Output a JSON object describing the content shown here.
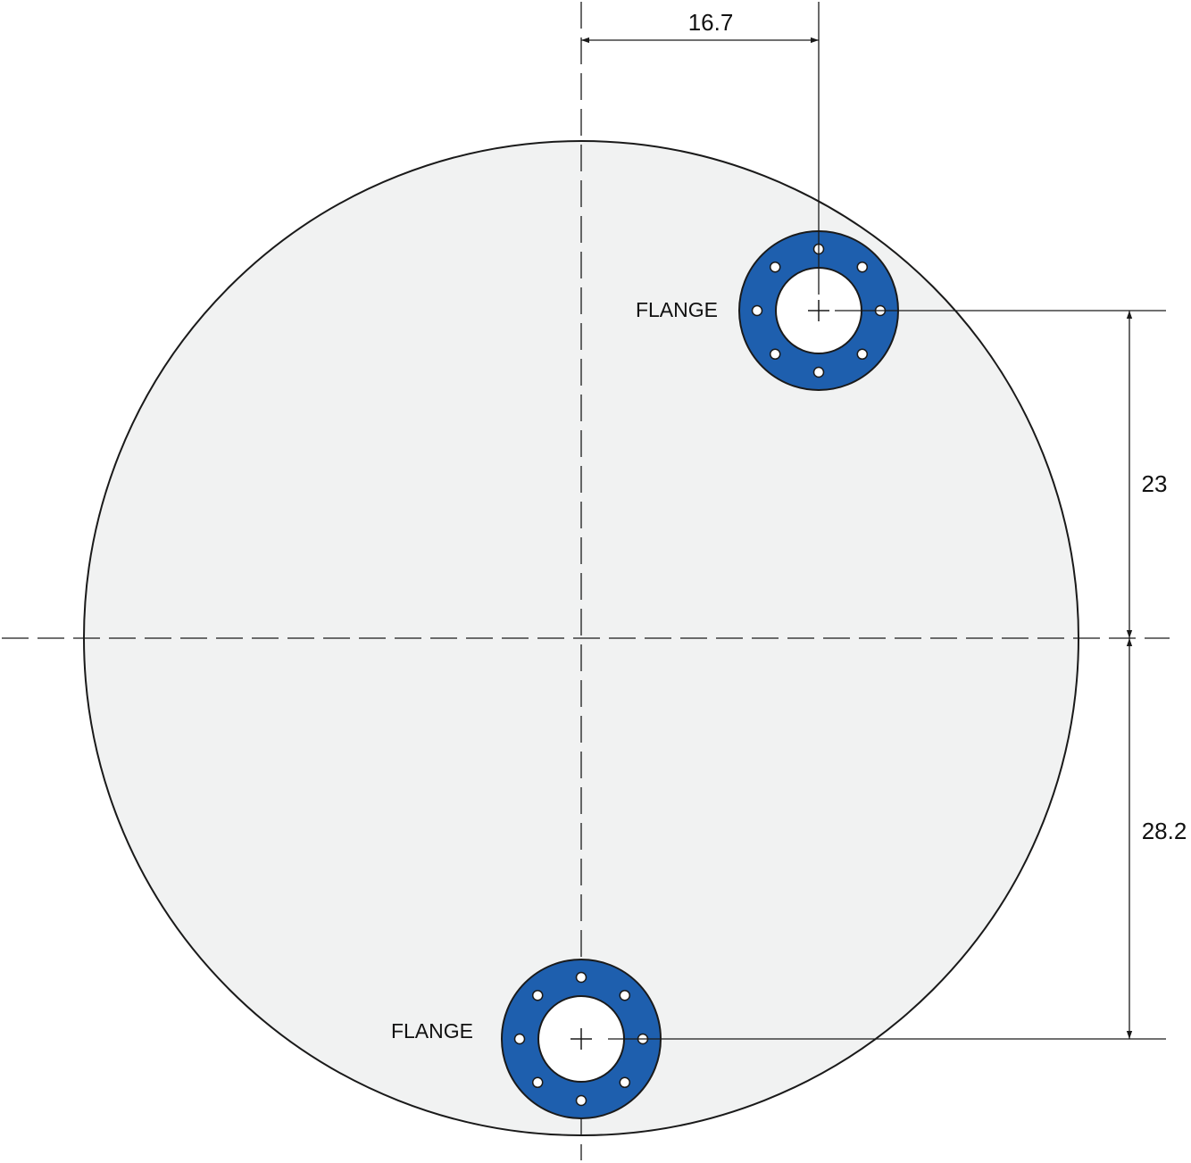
{
  "drawing": {
    "colors": {
      "background": "#ffffff",
      "plate_fill": "#f1f2f2",
      "outline": "#1a1a1a",
      "flange_fill": "#1e5fae",
      "bolt_hole_fill": "#ffffff"
    },
    "flanges": [
      {
        "label": "FLANGE",
        "bolt_holes": 8
      },
      {
        "label": "FLANGE",
        "bolt_holes": 8
      }
    ],
    "dimensions": {
      "flange_top_horizontal_offset": "16.7",
      "flange_top_vertical_offset": "23",
      "flange_bottom_vertical_offset": "28.2"
    }
  }
}
